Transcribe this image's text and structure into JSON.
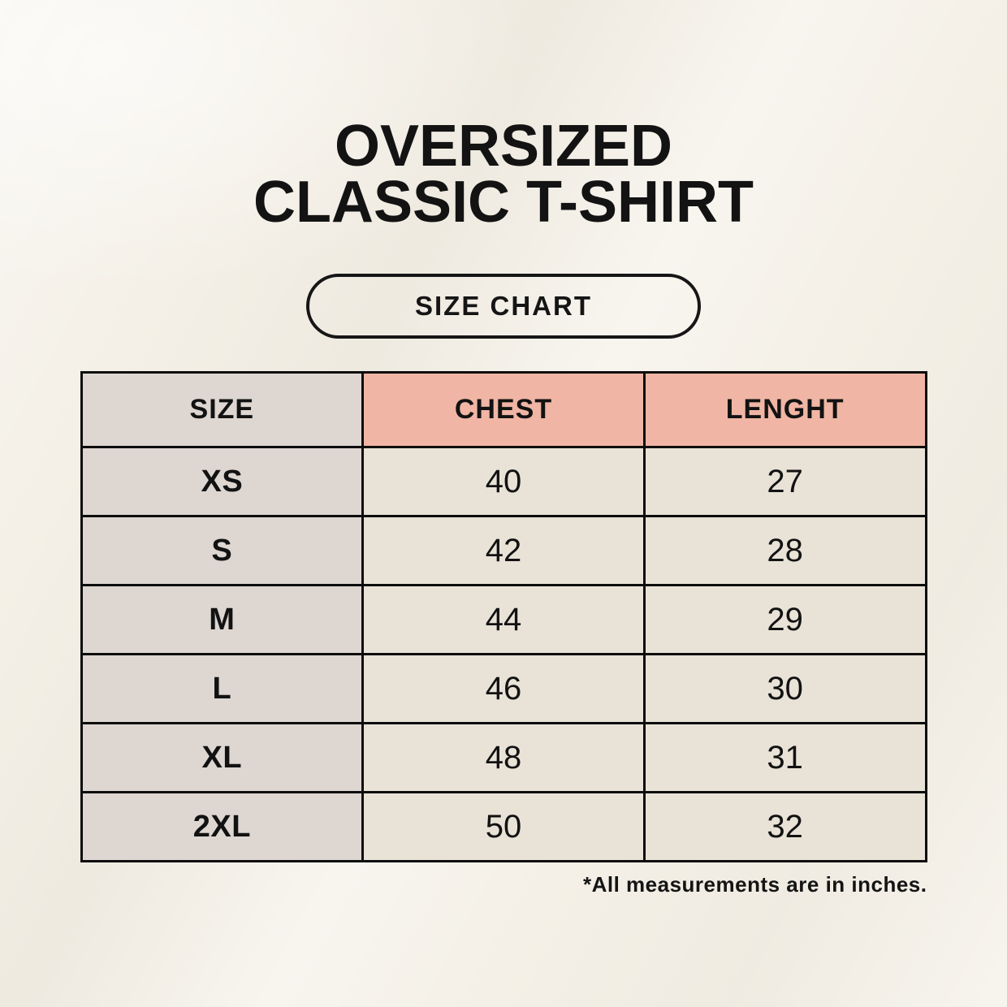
{
  "page": {
    "title_line1": "OVERSIZED",
    "title_line2": "CLASSIC T-SHIRT",
    "badge": "SIZE CHART",
    "footnote": "*All measurements are in inches."
  },
  "colors": {
    "background": "#f4f0e7",
    "size_column": "#ddd6d1",
    "header_accent": "#f0b5a4",
    "value_cell": "#e9e2d7",
    "border": "#0d0d0d",
    "text": "#121212"
  },
  "chart_data": {
    "type": "table",
    "title": "OVERSIZED CLASSIC T-SHIRT",
    "subtitle": "SIZE CHART",
    "columns": [
      "SIZE",
      "CHEST",
      "LENGHT"
    ],
    "rows": [
      {
        "size": "XS",
        "chest": "40",
        "lenght": "27"
      },
      {
        "size": "S",
        "chest": "42",
        "lenght": "28"
      },
      {
        "size": "M",
        "chest": "44",
        "lenght": "29"
      },
      {
        "size": "L",
        "chest": "46",
        "lenght": "30"
      },
      {
        "size": "XL",
        "chest": "48",
        "lenght": "31"
      },
      {
        "size": "2XL",
        "chest": "50",
        "lenght": "32"
      }
    ],
    "note": "*All measurements are in inches.",
    "units": "inches"
  }
}
